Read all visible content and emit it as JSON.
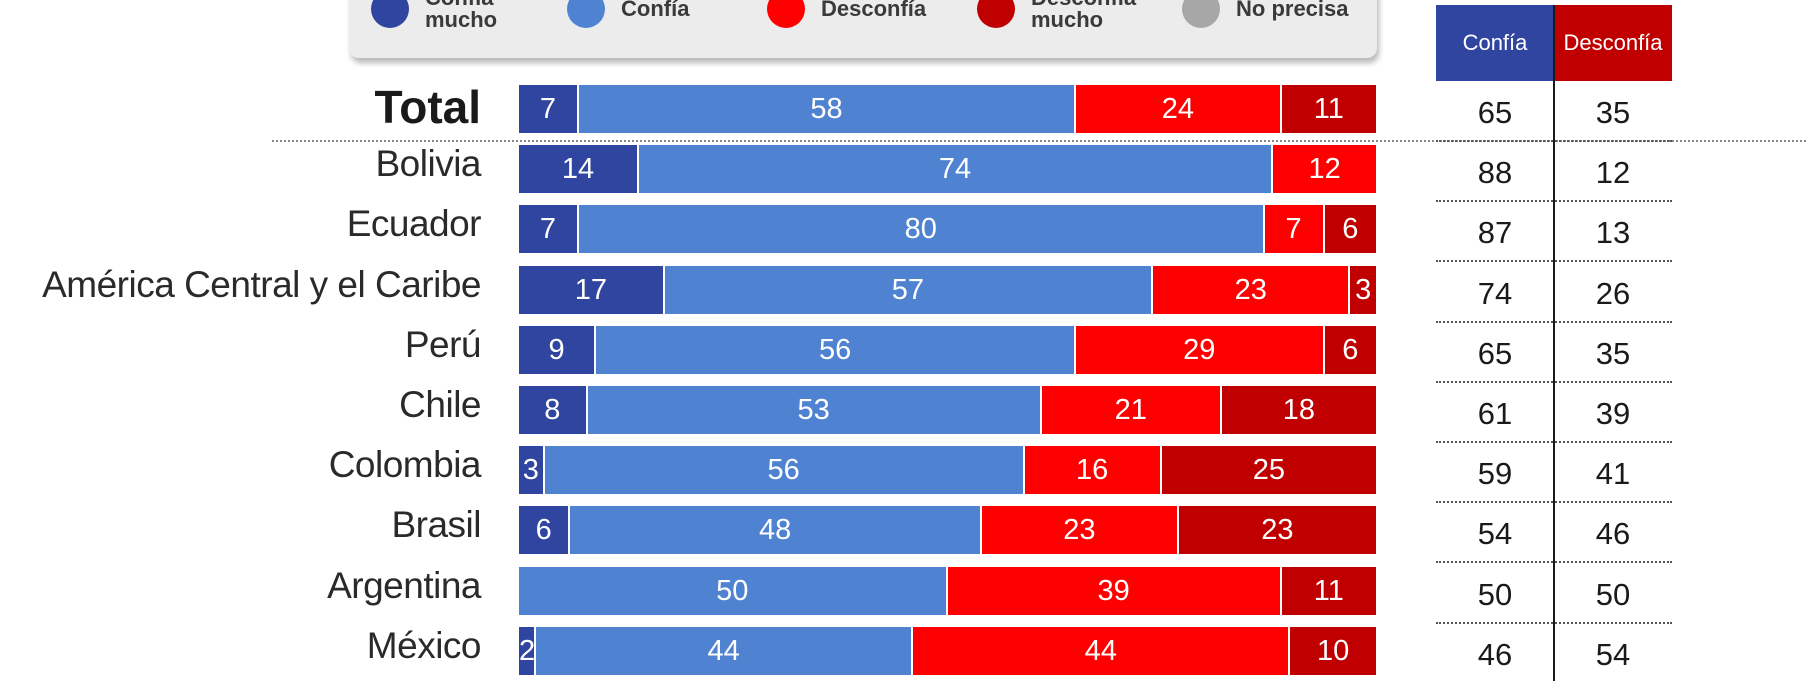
{
  "chart_data": {
    "type": "bar",
    "orientation": "horizontal",
    "stacked": true,
    "grid": false,
    "legend_position": "top",
    "legend": [
      {
        "key": "confia_mucho",
        "label_lines": [
          "Confía",
          "mucho"
        ],
        "color": "#2f45a0"
      },
      {
        "key": "confia",
        "label_lines": [
          "Confía"
        ],
        "color": "#4f83d2"
      },
      {
        "key": "desconfia",
        "label_lines": [
          "Desconfía"
        ],
        "color": "#ff0000"
      },
      {
        "key": "desconfia_mucho",
        "label_lines": [
          "Desconfía",
          "mucho"
        ],
        "color": "#c00000"
      },
      {
        "key": "no_precisa",
        "label_lines": [
          "No precisa"
        ],
        "color": "#a7a7a7"
      }
    ],
    "categories": [
      "Total",
      "Bolivia",
      "Ecuador",
      "América Central y el Caribe",
      "Perú",
      "Chile",
      "Colombia",
      "Brasil",
      "Argentina",
      "México"
    ],
    "series": [
      {
        "name": "Confía mucho",
        "color": "#2f45a0",
        "values": [
          7,
          14,
          7,
          17,
          9,
          8,
          3,
          6,
          0,
          2
        ]
      },
      {
        "name": "Confía",
        "color": "#4f83d2",
        "values": [
          58,
          74,
          80,
          57,
          56,
          53,
          56,
          48,
          50,
          44
        ]
      },
      {
        "name": "Desconfía",
        "color": "#ff0000",
        "values": [
          24,
          12,
          7,
          23,
          29,
          21,
          16,
          23,
          39,
          44
        ]
      },
      {
        "name": "Desconfía mucho",
        "color": "#c00000",
        "values": [
          11,
          0,
          6,
          3,
          6,
          18,
          25,
          23,
          11,
          10
        ]
      }
    ],
    "summary": {
      "columns": [
        {
          "label": "Confía",
          "color": "#2f45a0",
          "values": [
            65,
            88,
            87,
            74,
            65,
            61,
            59,
            54,
            50,
            46
          ]
        },
        {
          "label": "Desconfía",
          "color": "#c00000",
          "values": [
            35,
            12,
            13,
            26,
            35,
            39,
            41,
            46,
            50,
            54
          ]
        }
      ]
    },
    "xlim": [
      0,
      100
    ]
  }
}
